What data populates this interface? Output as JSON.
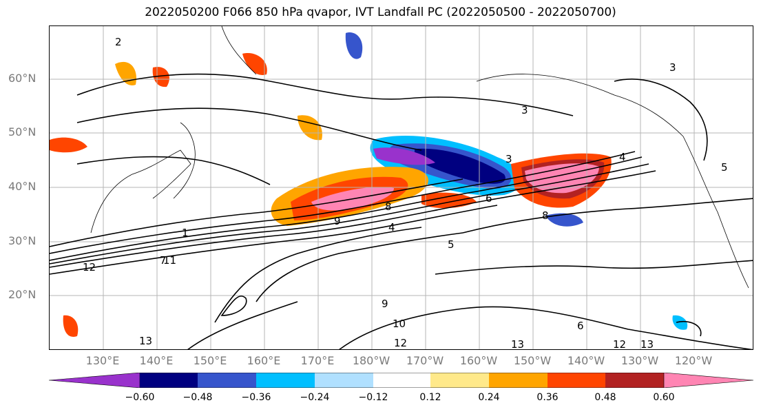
{
  "figure": {
    "title": "2022050200 F066 850 hPa qvapor, IVT Landfall PC (2022050500 - 2022050700)"
  },
  "map": {
    "projection": "PlateCarree",
    "lat_range": [
      10,
      70
    ],
    "lon_range": [
      120,
      251
    ],
    "lat_ticks": [
      "60°N",
      "50°N",
      "40°N",
      "30°N",
      "20°N"
    ],
    "lon_ticks": [
      "130°E",
      "140°E",
      "150°E",
      "160°E",
      "170°E",
      "180°W",
      "170°W",
      "160°W",
      "150°W",
      "140°W",
      "130°W",
      "120°W"
    ],
    "gridlines": true,
    "contour_color": "#000000",
    "contour_labels": [
      "1",
      "2",
      "3",
      "3",
      "3",
      "4",
      "4",
      "5",
      "5",
      "6",
      "6",
      "7",
      "8",
      "8",
      "9",
      "9",
      "10",
      "11",
      "12",
      "12",
      "12",
      "13",
      "13",
      "13"
    ]
  },
  "colorbar": {
    "colors": [
      "#9932cc",
      "#000080",
      "#3655cc",
      "#00bfff",
      "#b0e0ff",
      "#ffffff",
      "#ffe98a",
      "#ffa500",
      "#ff4500",
      "#b22222",
      "#ff85b3"
    ],
    "ticks": [
      "−0.60",
      "−0.48",
      "−0.36",
      "−0.24",
      "−0.12",
      "0.12",
      "0.24",
      "0.36",
      "0.48",
      "0.60"
    ],
    "extend": "both"
  }
}
